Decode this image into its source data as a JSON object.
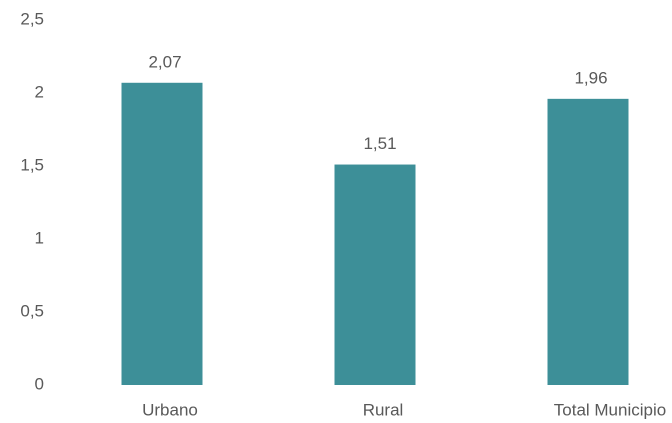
{
  "chart_data": {
    "type": "bar",
    "categories": [
      "Urbano",
      "Rural",
      "Total Municipio"
    ],
    "values": [
      2.07,
      1.51,
      1.96
    ],
    "value_labels": [
      "2,07",
      "1,51",
      "1,96"
    ],
    "color": "#3d8f98",
    "ylim": [
      0,
      2.5
    ],
    "yticks": [
      0,
      {
        "value": 0.5,
        "label": "0,5"
      },
      1,
      {
        "value": 1.5,
        "label": "1,5"
      },
      2,
      {
        "value": 2.5,
        "label": "2,5"
      }
    ],
    "grid": false
  }
}
